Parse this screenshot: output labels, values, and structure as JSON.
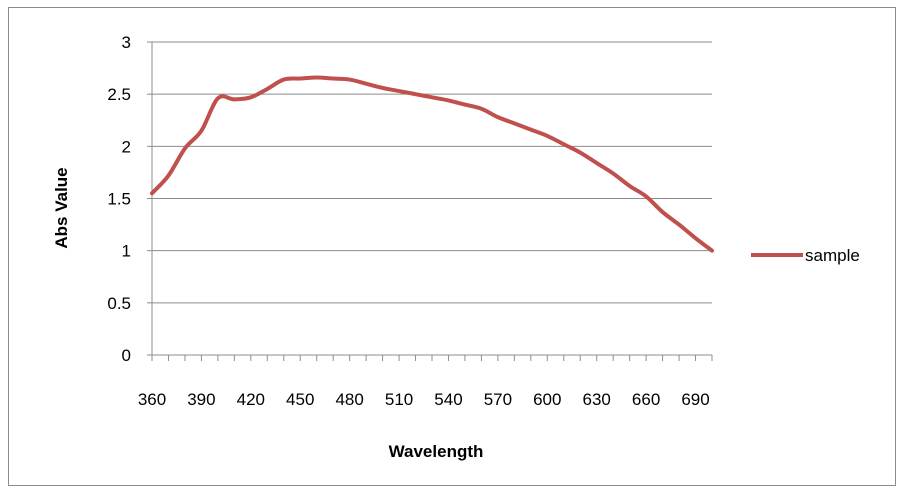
{
  "chart_data": {
    "type": "line",
    "title": "",
    "xlabel": "Wavelength",
    "ylabel": "Abs Value",
    "x_tick_labels": [
      "360",
      "390",
      "420",
      "450",
      "480",
      "510",
      "540",
      "570",
      "600",
      "630",
      "660",
      "690"
    ],
    "y_tick_labels": [
      "0",
      "0.5",
      "1",
      "1.5",
      "2",
      "2.5",
      "3"
    ],
    "xlim": [
      360,
      700
    ],
    "ylim": [
      0,
      3
    ],
    "grid": "horizontal",
    "legend": "right",
    "series": [
      {
        "name": "sample",
        "color": "#c0504d",
        "x": [
          360,
          370,
          380,
          390,
          400,
          410,
          420,
          430,
          440,
          450,
          460,
          470,
          480,
          490,
          500,
          510,
          520,
          530,
          540,
          550,
          560,
          570,
          580,
          590,
          600,
          610,
          620,
          630,
          640,
          650,
          660,
          670,
          680,
          690,
          700
        ],
        "values": [
          1.55,
          1.72,
          1.98,
          2.15,
          2.46,
          2.45,
          2.47,
          2.55,
          2.64,
          2.65,
          2.66,
          2.65,
          2.64,
          2.6,
          2.56,
          2.53,
          2.5,
          2.47,
          2.44,
          2.4,
          2.36,
          2.28,
          2.22,
          2.16,
          2.1,
          2.02,
          1.94,
          1.84,
          1.74,
          1.62,
          1.52,
          1.37,
          1.25,
          1.12,
          1.0
        ]
      }
    ]
  }
}
